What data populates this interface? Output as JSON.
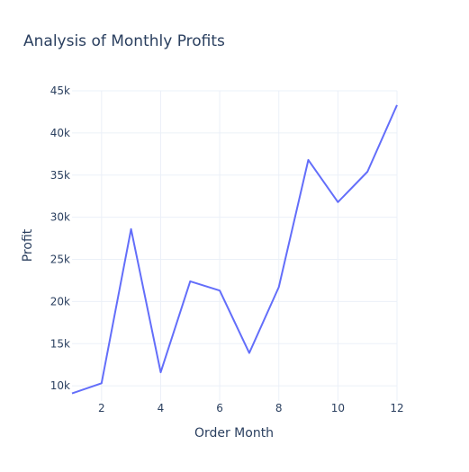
{
  "chart_data": {
    "type": "line",
    "title": "Analysis of Monthly Profits",
    "xlabel": "Order Month",
    "ylabel": "Profit",
    "x": [
      1,
      2,
      3,
      4,
      5,
      6,
      7,
      8,
      9,
      10,
      11,
      12
    ],
    "series": [
      {
        "values": [
          9100,
          10300,
          28600,
          11600,
          22400,
          21300,
          13900,
          21700,
          36800,
          31800,
          35400,
          43300
        ]
      }
    ],
    "xlim": [
      1,
      12
    ],
    "ylim": [
      8200,
      45000
    ],
    "x_ticks": [
      2,
      4,
      6,
      8,
      10,
      12
    ],
    "x_tick_labels": [
      "2",
      "4",
      "6",
      "8",
      "10",
      "12"
    ],
    "y_ticks": [
      10000,
      15000,
      20000,
      25000,
      30000,
      35000,
      40000,
      45000
    ],
    "y_tick_labels": [
      "10k",
      "15k",
      "20k",
      "25k",
      "30k",
      "35k",
      "40k",
      "45k"
    ],
    "grid": true,
    "line_color": "#636efa",
    "background_color": "#ffffff",
    "grid_color": "#ebf0f8",
    "text_color": "#2a3f5f"
  }
}
